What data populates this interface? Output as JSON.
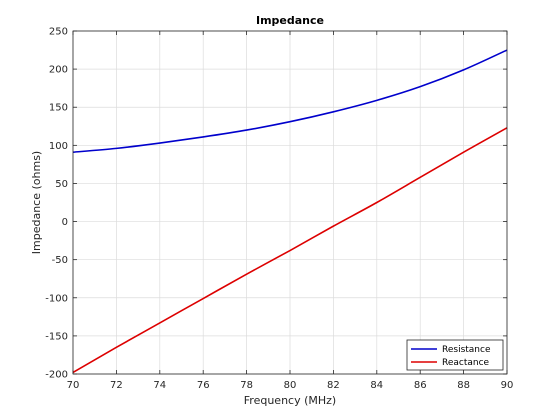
{
  "chart_data": {
    "type": "line",
    "title": "Impedance",
    "xlabel": "Frequency (MHz)",
    "ylabel": "Impedance (ohms)",
    "xlim": [
      70,
      90
    ],
    "ylim": [
      -200,
      250
    ],
    "xticks": [
      70,
      72,
      74,
      76,
      78,
      80,
      82,
      84,
      86,
      88,
      90
    ],
    "yticks": [
      -200,
      -150,
      -100,
      -50,
      0,
      50,
      100,
      150,
      200,
      250
    ],
    "grid": true,
    "legend_position": "bottom-right",
    "x": [
      70,
      72,
      74,
      76,
      78,
      80,
      82,
      84,
      86,
      88,
      90
    ],
    "series": [
      {
        "name": "Resistance",
        "color": "#0000cc",
        "values": [
          91,
          96,
          103,
          111,
          120,
          131,
          144,
          159,
          177,
          199,
          225
        ]
      },
      {
        "name": "Reactance",
        "color": "#dd0000",
        "values": [
          -198,
          -165,
          -133,
          -101,
          -69,
          -38,
          -6,
          25,
          58,
          91,
          123
        ]
      }
    ]
  }
}
